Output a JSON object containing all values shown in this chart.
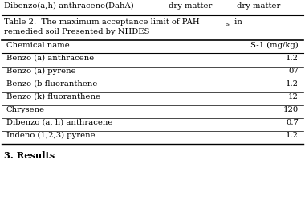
{
  "top_text_left": "Dibenzo(a,h) anthracene(DahA)",
  "top_text_mid": "dry matter",
  "top_text_right": "dry matter",
  "title1": "Table 2.  The maximum acceptance limit of PAH",
  "title1_sub": "s",
  "title1_end": " in",
  "title2": "remedied soil Presented by NHDES",
  "header_col1": "Chemical name",
  "header_col2": "S-1 (mg/kg)",
  "rows": [
    [
      "Benzo (a) anthracene",
      "1.2"
    ],
    [
      "Benzo (a) pyrene",
      "07"
    ],
    [
      "Benzo (b fluoranthene",
      "1.2"
    ],
    [
      "Benzo (k) fluoranthene",
      "12"
    ],
    [
      "Chrysene",
      "120"
    ],
    [
      "Dibenzo (a, h) anthracene",
      "0.7"
    ],
    [
      "Indeno (1,2,3) pyrene",
      "1.2"
    ]
  ],
  "section_header": "3. Results",
  "bg_color": "#ffffff",
  "text_color": "#000000",
  "font_size": 7.2,
  "title_font_size": 7.2,
  "sub_font_size": 5.5
}
